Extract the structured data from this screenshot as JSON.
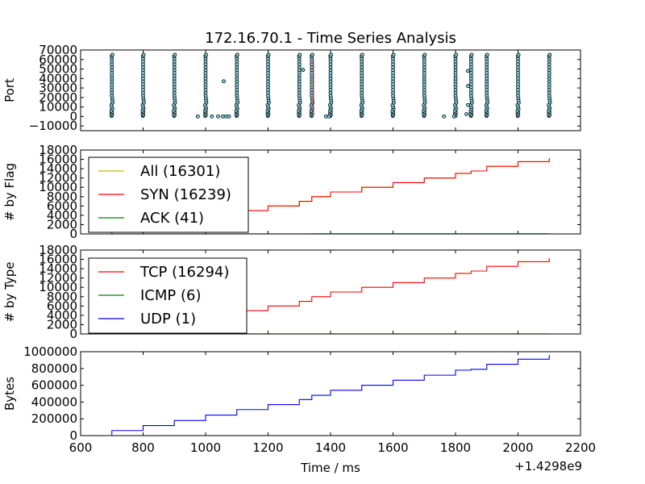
{
  "chart_data": {
    "title": "172.16.70.1 - Time Series Analysis",
    "xlabel": "Time / ms",
    "x_offset_label": "+1.4298e9",
    "xlim": [
      600,
      2200
    ],
    "xticks": [
      "600",
      "800",
      "1000",
      "1200",
      "1400",
      "1600",
      "1800",
      "2000",
      "2200"
    ],
    "xtick_values": [
      600,
      800,
      1000,
      1200,
      1400,
      1600,
      1800,
      2000,
      2200
    ],
    "step_times": [
      700,
      800,
      900,
      1000,
      1100,
      1200,
      1300,
      1340,
      1400,
      1500,
      1600,
      1700,
      1800,
      1850,
      1900,
      2000,
      2100
    ],
    "panels": [
      {
        "name": "port",
        "type": "scatter",
        "ylabel": "Port",
        "ylim": [
          -15000,
          70000
        ],
        "yticks": [
          "−10000",
          "0",
          "10000",
          "20000",
          "30000",
          "40000",
          "50000",
          "60000",
          "70000"
        ],
        "ytick_values": [
          -10000,
          0,
          10000,
          20000,
          30000,
          40000,
          50000,
          60000,
          70000
        ],
        "scan_columns": [
          700,
          800,
          900,
          1000,
          1100,
          1200,
          1300,
          1340,
          1400,
          1500,
          1600,
          1700,
          1800,
          1850,
          1900,
          2000,
          2100
        ],
        "isolated_points": [
          {
            "x": 1058,
            "y": 37000
          },
          {
            "x": 1312,
            "y": 49000
          },
          {
            "x": 1840,
            "y": 48000
          },
          {
            "x": 1840,
            "y": 32000
          },
          {
            "x": 1840,
            "y": 12000
          },
          {
            "x": 1835,
            "y": 2500
          },
          {
            "x": 975,
            "y": 0
          },
          {
            "x": 1020,
            "y": 0
          },
          {
            "x": 1040,
            "y": 0
          },
          {
            "x": 1055,
            "y": 0
          },
          {
            "x": 1065,
            "y": 0
          },
          {
            "x": 1075,
            "y": 0
          },
          {
            "x": 1385,
            "y": 0
          },
          {
            "x": 1395,
            "y": 0
          },
          {
            "x": 1763,
            "y": 0
          },
          {
            "x": 1795,
            "y": 0
          }
        ]
      },
      {
        "name": "flag",
        "type": "line",
        "ylabel": "# by Flag",
        "ylim": [
          0,
          18000
        ],
        "yticks": [
          "0",
          "2000",
          "4000",
          "6000",
          "8000",
          "10000",
          "12000",
          "14000",
          "16000",
          "18000"
        ],
        "ytick_values": [
          0,
          2000,
          4000,
          6000,
          8000,
          10000,
          12000,
          14000,
          16000,
          18000
        ],
        "series": [
          {
            "name": "All",
            "legend": "All (16301)",
            "color": "#bfbf00",
            "values": [
              0,
              1000,
              2000,
              3000,
              4000,
              5000,
              6000,
              7000,
              8000,
              9000,
              10000,
              11000,
              12000,
              13000,
              13500,
              14500,
              15500,
              16301
            ]
          },
          {
            "name": "SYN",
            "legend": "SYN (16239)",
            "color": "#ff0000",
            "values": [
              0,
              1000,
              2000,
              3000,
              4000,
              5000,
              6000,
              7000,
              8000,
              9000,
              10000,
              11000,
              12000,
              13000,
              13500,
              14500,
              15500,
              16239
            ]
          },
          {
            "name": "ACK",
            "legend": "ACK (41)",
            "color": "#008000",
            "values": [
              0,
              3,
              6,
              9,
              12,
              15,
              18,
              21,
              24,
              27,
              30,
              32,
              34,
              36,
              37,
              38,
              40,
              41
            ]
          }
        ]
      },
      {
        "name": "type",
        "type": "line",
        "ylabel": "# by Type",
        "ylim": [
          0,
          18000
        ],
        "yticks": [
          "0",
          "2000",
          "4000",
          "6000",
          "8000",
          "10000",
          "12000",
          "14000",
          "16000",
          "18000"
        ],
        "ytick_values": [
          0,
          2000,
          4000,
          6000,
          8000,
          10000,
          12000,
          14000,
          16000,
          18000
        ],
        "series": [
          {
            "name": "TCP",
            "legend": "TCP (16294)",
            "color": "#ff0000",
            "values": [
              0,
              1000,
              2000,
              3000,
              4000,
              5000,
              6000,
              7000,
              8000,
              9000,
              10000,
              11000,
              12000,
              13000,
              13500,
              14500,
              15500,
              16294
            ]
          },
          {
            "name": "ICMP",
            "legend": "ICMP (6)",
            "color": "#008000",
            "values": [
              0,
              1,
              1,
              2,
              2,
              3,
              3,
              3,
              4,
              4,
              5,
              5,
              6,
              6,
              6,
              6,
              6,
              6
            ]
          },
          {
            "name": "UDP",
            "legend": "UDP (1)",
            "color": "#0000ff",
            "values": [
              0,
              0,
              0,
              0,
              1,
              1,
              1,
              1,
              1,
              1,
              1,
              1,
              1,
              1,
              1,
              1,
              1,
              1
            ]
          }
        ]
      },
      {
        "name": "bytes",
        "type": "line",
        "ylabel": "Bytes",
        "ylim": [
          0,
          1000000
        ],
        "yticks": [
          "0",
          "200000",
          "400000",
          "600000",
          "800000",
          "1000000"
        ],
        "ytick_values": [
          0,
          200000,
          400000,
          600000,
          800000,
          1000000
        ],
        "series": [
          {
            "name": "Bytes",
            "color": "#0000ff",
            "values": [
              0,
              60000,
              120000,
              180000,
              245000,
              310000,
              370000,
              430000,
              480000,
              540000,
              600000,
              660000,
              720000,
              780000,
              790000,
              850000,
              910000,
              960000
            ]
          }
        ]
      }
    ]
  }
}
